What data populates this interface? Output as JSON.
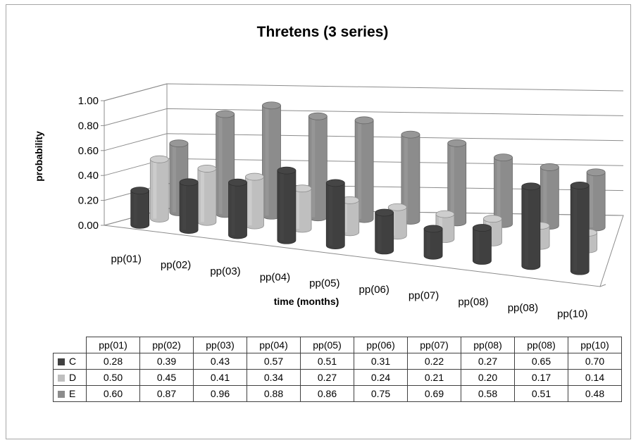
{
  "chart_data": {
    "type": "bar",
    "title": "Thretens (3 series)",
    "xlabel": "time  (months)",
    "ylabel": "probability",
    "ylim": [
      0,
      1
    ],
    "yticks": [
      "0.00",
      "0.20",
      "0.40",
      "0.60",
      "0.80",
      "1.00"
    ],
    "categories": [
      "pp(01)",
      "pp(02)",
      "pp(03)",
      "pp(04)",
      "pp(05)",
      "pp(06)",
      "pp(07)",
      "pp(08)",
      "pp(08)",
      "pp(10)"
    ],
    "series": [
      {
        "name": "C",
        "color": "#404040",
        "values": [
          0.28,
          0.39,
          0.43,
          0.57,
          0.51,
          0.31,
          0.22,
          0.27,
          0.65,
          0.7
        ]
      },
      {
        "name": "D",
        "color": "#bfbfbf",
        "values": [
          0.5,
          0.45,
          0.41,
          0.34,
          0.27,
          0.24,
          0.21,
          0.2,
          0.17,
          0.14
        ]
      },
      {
        "name": "E",
        "color": "#8c8c8c",
        "values": [
          0.6,
          0.87,
          0.96,
          0.88,
          0.86,
          0.75,
          0.69,
          0.58,
          0.51,
          0.48
        ]
      }
    ],
    "grid": true,
    "legend": "data-table"
  },
  "table": {
    "rows": [
      {
        "name": "C",
        "values": [
          "0.28",
          "0.39",
          "0.43",
          "0.57",
          "0.51",
          "0.31",
          "0.22",
          "0.27",
          "0.65",
          "0.70"
        ]
      },
      {
        "name": "D",
        "values": [
          "0.50",
          "0.45",
          "0.41",
          "0.34",
          "0.27",
          "0.24",
          "0.21",
          "0.20",
          "0.17",
          "0.14"
        ]
      },
      {
        "name": "E",
        "values": [
          "0.60",
          "0.87",
          "0.96",
          "0.88",
          "0.86",
          "0.75",
          "0.69",
          "0.58",
          "0.51",
          "0.48"
        ]
      }
    ]
  }
}
